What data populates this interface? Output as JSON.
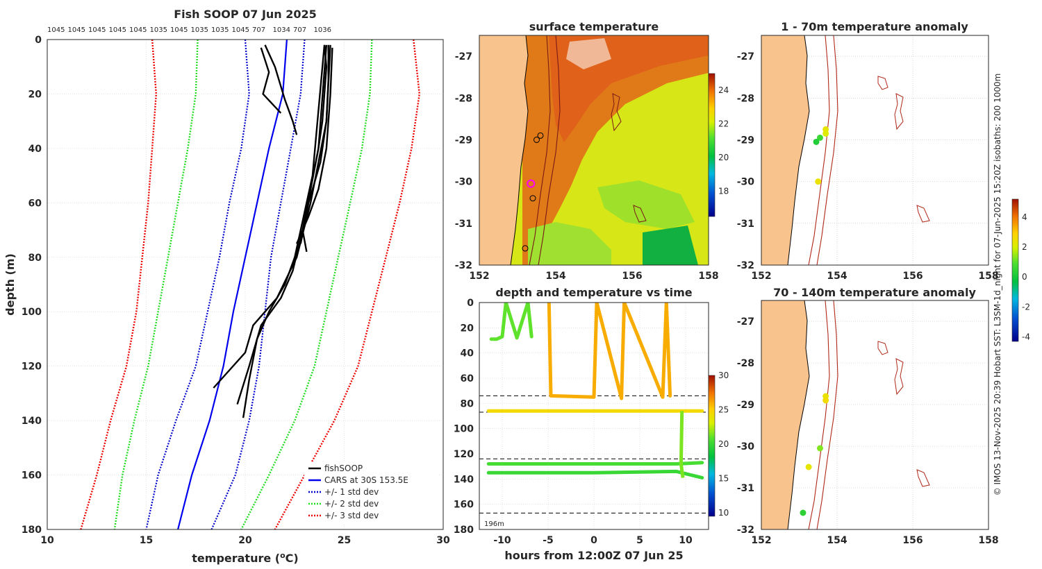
{
  "chart_data": [
    {
      "type": "line",
      "title": "Fish SOOP 07 Jun 2025",
      "xlabel": "temperature (",
      "xlabel_sup": "o",
      "xlabel_unit": "C)",
      "ylabel": "depth (m)",
      "xlim": [
        10,
        30
      ],
      "ylim": [
        0,
        180
      ],
      "x_ticks": [
        10,
        15,
        20,
        25,
        30
      ],
      "y_ticks": [
        0,
        20,
        40,
        60,
        80,
        100,
        120,
        140,
        160,
        180
      ],
      "top_labels": [
        "1045",
        "1045",
        "1045",
        "1045",
        "1045",
        "1035",
        "1045",
        "1035",
        "1035",
        "1045",
        "707",
        "1034",
        "707",
        "1036"
      ],
      "legend": [
        "fishSOOP",
        "CARS at 30S 153.5E",
        "+/- 1 std dev",
        "+/- 2 std dev",
        "+/- 3 std dev"
      ],
      "series": [
        {
          "name": "CARS at 30S 153.5E",
          "depth": [
            0,
            20,
            40,
            50,
            60,
            70,
            80,
            100,
            120,
            140,
            160,
            180
          ],
          "temp": [
            22.1,
            21.9,
            21.2,
            20.9,
            20.6,
            20.3,
            20.0,
            19.4,
            18.9,
            18.2,
            17.3,
            16.6
          ]
        },
        {
          "name": "+1 std dev",
          "depth": [
            0,
            20,
            40,
            60,
            80,
            100,
            120,
            140,
            160,
            180
          ],
          "temp": [
            23.0,
            22.8,
            22.3,
            21.8,
            21.3,
            21.0,
            20.7,
            20.2,
            19.5,
            18.3
          ]
        },
        {
          "name": "-1 std dev",
          "depth": [
            0,
            20,
            40,
            60,
            80,
            100,
            120,
            140,
            160,
            180
          ],
          "temp": [
            20.0,
            20.2,
            19.8,
            19.2,
            18.7,
            18.1,
            17.5,
            16.5,
            15.6,
            15.0
          ]
        },
        {
          "name": "+2 std dev",
          "depth": [
            0,
            20,
            40,
            60,
            80,
            100,
            120,
            140,
            160,
            180
          ],
          "temp": [
            26.4,
            26.3,
            25.9,
            25.3,
            24.7,
            24.1,
            23.5,
            22.5,
            21.2,
            19.8
          ]
        },
        {
          "name": "-2 std dev",
          "depth": [
            0,
            20,
            40,
            60,
            80,
            100,
            120,
            140,
            160,
            180
          ],
          "temp": [
            17.6,
            17.5,
            17.1,
            16.6,
            16.1,
            15.6,
            15.1,
            14.4,
            13.8,
            13.4
          ]
        },
        {
          "name": "+3 std dev",
          "depth": [
            0,
            20,
            40,
            60,
            80,
            100,
            120,
            140,
            160,
            180
          ],
          "temp": [
            28.5,
            28.8,
            28.4,
            27.8,
            27.1,
            26.4,
            25.7,
            24.5,
            23.0,
            21.5
          ]
        },
        {
          "name": "-3 std dev",
          "depth": [
            0,
            20,
            40,
            60,
            80,
            100,
            120,
            140,
            160,
            180
          ],
          "temp": [
            15.3,
            15.5,
            15.3,
            15.1,
            14.8,
            14.5,
            14.0,
            13.2,
            12.5,
            11.7
          ]
        },
        {
          "name": "fishSOOP",
          "profiles": [
            {
              "depth": [
                2,
                10,
                20,
                30,
                40,
                55,
                70,
                78
              ],
              "temp": [
                24.0,
                24.1,
                24.0,
                23.9,
                23.7,
                23.3,
                22.9,
                23.1
              ]
            },
            {
              "depth": [
                2,
                15,
                30,
                45,
                60,
                75
              ],
              "temp": [
                24.2,
                24.2,
                24.1,
                23.8,
                23.2,
                22.8
              ]
            },
            {
              "depth": [
                3,
                20,
                40,
                55,
                65,
                75
              ],
              "temp": [
                24.4,
                24.3,
                24.1,
                23.7,
                23.2,
                22.6
              ]
            },
            {
              "depth": [
                2,
                10,
                22,
                30,
                35
              ],
              "temp": [
                21.0,
                21.5,
                22.0,
                22.4,
                22.6
              ]
            },
            {
              "depth": [
                3,
                12,
                20,
                27
              ],
              "temp": [
                20.8,
                21.2,
                20.9,
                21.8
              ]
            },
            {
              "depth": [
                2,
                30,
                60,
                80,
                86,
                95,
                105,
                115,
                128
              ],
              "temp": [
                24.3,
                24.1,
                23.3,
                22.6,
                22.2,
                21.6,
                20.4,
                20.0,
                18.4
              ]
            },
            {
              "depth": [
                2,
                40,
                70,
                85,
                95,
                105,
                120,
                134
              ],
              "temp": [
                24.1,
                23.7,
                22.9,
                22.4,
                21.8,
                20.8,
                20.2,
                19.6
              ]
            },
            {
              "depth": [
                2,
                50,
                80,
                90,
                100,
                110,
                125,
                139
              ],
              "temp": [
                24.0,
                23.4,
                22.5,
                22.0,
                21.2,
                20.6,
                20.2,
                19.9
              ]
            }
          ]
        }
      ]
    },
    {
      "type": "heatmap",
      "title": "surface temperature",
      "xlim": [
        152,
        158
      ],
      "ylim": [
        -32,
        -26.5
      ],
      "x_ticks": [
        152,
        154,
        156,
        158
      ],
      "y_ticks": [
        -27,
        -28,
        -29,
        -30,
        -31,
        -32
      ],
      "colorbar_ticks": [
        18,
        20,
        22,
        24
      ],
      "colorbar_range": [
        16.5,
        25
      ],
      "sites": [
        [
          153.6,
          -28.9
        ],
        [
          153.5,
          -29.0
        ],
        [
          153.4,
          -30.4
        ],
        [
          153.2,
          -31.6
        ]
      ],
      "current_site": [
        153.35,
        -30.05
      ]
    },
    {
      "type": "scatter",
      "title": "depth and temperature vs time",
      "xlabel": "hours from 12:00Z 07 Jun 25",
      "xlim": [
        -12.5,
        12.5
      ],
      "ylim": [
        0,
        180
      ],
      "x_ticks": [
        -10,
        -5,
        0,
        5,
        10
      ],
      "y_ticks": [
        0,
        20,
        40,
        60,
        80,
        100,
        120,
        140,
        160,
        180
      ],
      "colorbar_ticks": [
        10,
        15,
        20,
        25,
        30
      ],
      "colorbar_range": [
        9.5,
        30
      ],
      "annotation": "196m",
      "reference_depths": [
        74,
        87,
        124,
        167
      ],
      "tracks": [
        {
          "temp": 21,
          "depth": [
            29,
            29,
            27,
            0,
            28,
            0,
            27
          ]
        },
        {
          "temp": 26,
          "depth": [
            0,
            74,
            75,
            0,
            76,
            0,
            75,
            0,
            74
          ]
        },
        {
          "temp": 24.5,
          "depth": [
            86,
            86,
            86,
            86
          ]
        },
        {
          "temp": 20.5,
          "depth": [
            128,
            128,
            128,
            127
          ]
        },
        {
          "temp": 20,
          "depth": [
            135,
            135,
            134,
            139
          ]
        }
      ]
    },
    {
      "type": "scatter",
      "title": "1 - 70m temperature anomaly",
      "xlim": [
        152,
        158
      ],
      "ylim": [
        -32,
        -26.5
      ],
      "x_ticks": [
        152,
        154,
        156,
        158
      ],
      "y_ticks": [
        -27,
        -28,
        -29,
        -30,
        -31,
        -32
      ],
      "points": [
        {
          "lon": 153.7,
          "lat": -28.75,
          "anomaly": 2.3
        },
        {
          "lon": 153.7,
          "lat": -28.85,
          "anomaly": 2.1
        },
        {
          "lon": 153.55,
          "lat": -28.95,
          "anomaly": 0.6
        },
        {
          "lon": 153.45,
          "lat": -29.05,
          "anomaly": 0.2
        },
        {
          "lon": 153.5,
          "lat": -30.0,
          "anomaly": 2.4
        }
      ]
    },
    {
      "type": "scatter",
      "title": "70 - 140m temperature anomaly",
      "xlim": [
        152,
        158
      ],
      "ylim": [
        -32,
        -26.5
      ],
      "x_ticks": [
        152,
        154,
        156,
        158
      ],
      "y_ticks": [
        -27,
        -28,
        -29,
        -30,
        -31,
        -32
      ],
      "colorbar_ticks": [
        4,
        2,
        0,
        -2,
        -4
      ],
      "colorbar_range": [
        -4.3,
        5.2
      ],
      "points": [
        {
          "lon": 153.7,
          "lat": -28.8,
          "anomaly": 2.4
        },
        {
          "lon": 153.7,
          "lat": -28.9,
          "anomaly": 2.6
        },
        {
          "lon": 153.55,
          "lat": -30.05,
          "anomaly": 1.3
        },
        {
          "lon": 153.25,
          "lat": -30.5,
          "anomaly": 2.3
        },
        {
          "lon": 153.1,
          "lat": -31.6,
          "anomaly": 0.4
        }
      ]
    }
  ],
  "side_note": "© IMOS 13-Nov-2025 20:39 Hobart SST: L3SM-1d_night for 07-Jun-2025 15:20Z isobaths: 200  1000m"
}
